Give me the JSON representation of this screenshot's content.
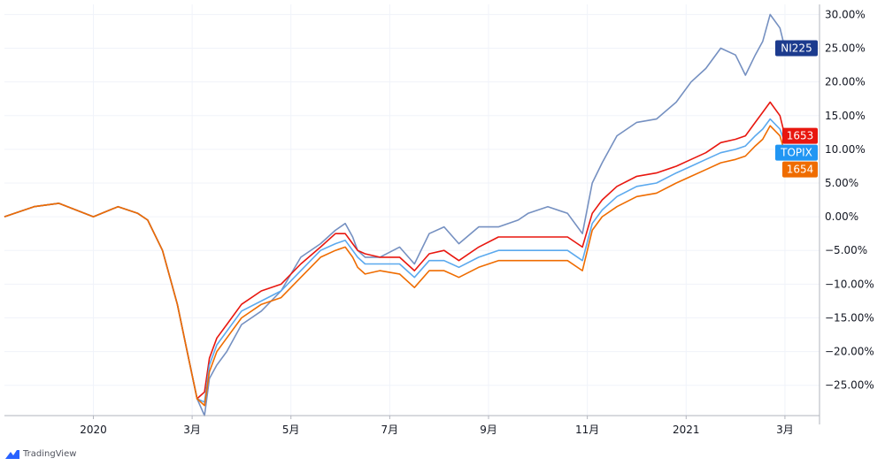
{
  "chart_data": {
    "type": "line",
    "x_ticks": [
      "2020",
      "3月",
      "5月",
      "7月",
      "9月",
      "11月",
      "2021",
      "3月"
    ],
    "y_ticks": [
      "30.00%",
      "25.00%",
      "20.00%",
      "15.00%",
      "10.00%",
      "5.00%",
      "0.00%",
      "−5.00%",
      "−10.00%",
      "−15.00%",
      "−20.00%",
      "−25.00%"
    ],
    "y_tick_values": [
      30,
      25,
      20,
      15,
      10,
      5,
      0,
      -5,
      -10,
      -15,
      -20,
      -25
    ],
    "ylim": [
      -29.5,
      31.5
    ],
    "x_tick_positions": [
      2.2,
      4.2,
      6.2,
      8.2,
      10.2,
      12.2,
      14.2,
      16.2
    ],
    "xlim": [
      0.4,
      16.9
    ],
    "grid": true,
    "series": [
      {
        "name": "NI225",
        "color": "#7590c1",
        "label_color": "#1c3b8e",
        "x": [
          0.4,
          1.0,
          1.5,
          2.2,
          2.7,
          3.1,
          3.3,
          3.6,
          3.9,
          4.1,
          4.3,
          4.45,
          4.55,
          4.7,
          4.9,
          5.2,
          5.6,
          6.0,
          6.4,
          6.8,
          7.1,
          7.3,
          7.45,
          7.55,
          7.7,
          8.0,
          8.4,
          8.7,
          9.0,
          9.3,
          9.6,
          10.0,
          10.4,
          10.8,
          11.0,
          11.4,
          11.8,
          12.1,
          12.3,
          12.5,
          12.8,
          13.2,
          13.6,
          14.0,
          14.3,
          14.6,
          14.9,
          15.2,
          15.4,
          15.6,
          15.75,
          15.9,
          16.1,
          16.2
        ],
        "values": [
          0,
          1.5,
          2.0,
          0,
          1.5,
          0.5,
          -0.5,
          -5,
          -13,
          -20,
          -27,
          -29.5,
          -24,
          -22,
          -20,
          -16,
          -14,
          -11,
          -6,
          -4,
          -2,
          -1,
          -3,
          -5,
          -6,
          -6,
          -4.5,
          -7,
          -2.5,
          -1.5,
          -4,
          -1.5,
          -1.5,
          -0.5,
          0.5,
          1.5,
          0.5,
          -2.5,
          5,
          8,
          12,
          14,
          14.5,
          17,
          20,
          22,
          25,
          24,
          21,
          24,
          26,
          30,
          28,
          25
        ]
      },
      {
        "name": "1653",
        "color": "#e8170f",
        "label_color": "#e8170f",
        "x": [
          0.4,
          1.0,
          1.5,
          2.2,
          2.7,
          3.1,
          3.3,
          3.6,
          3.9,
          4.1,
          4.3,
          4.45,
          4.55,
          4.7,
          4.9,
          5.2,
          5.6,
          6.0,
          6.4,
          6.8,
          7.1,
          7.3,
          7.45,
          7.55,
          7.7,
          8.0,
          8.4,
          8.7,
          9.0,
          9.3,
          9.6,
          10.0,
          10.4,
          10.8,
          11.0,
          11.4,
          11.8,
          12.1,
          12.3,
          12.5,
          12.8,
          13.2,
          13.6,
          14.0,
          14.3,
          14.6,
          14.9,
          15.2,
          15.4,
          15.6,
          15.75,
          15.9,
          16.1,
          16.2
        ],
        "values": [
          0,
          1.5,
          2.0,
          0,
          1.5,
          0.5,
          -0.5,
          -5,
          -13,
          -20,
          -27,
          -26,
          -21,
          -18,
          -16,
          -13,
          -11,
          -10,
          -7,
          -4.5,
          -2.5,
          -2.5,
          -4,
          -5,
          -5.5,
          -6,
          -6,
          -8,
          -5.5,
          -5,
          -6.5,
          -4.5,
          -3,
          -3,
          -3,
          -3,
          -3,
          -4.5,
          0.5,
          2.5,
          4.5,
          6,
          6.5,
          7.5,
          8.5,
          9.5,
          11,
          11.5,
          12,
          14,
          15.5,
          17,
          15,
          12
        ]
      },
      {
        "name": "TOPIX",
        "color": "#5ba9ee",
        "label_color": "#2196f3",
        "x": [
          0.4,
          1.0,
          1.5,
          2.2,
          2.7,
          3.1,
          3.3,
          3.6,
          3.9,
          4.1,
          4.3,
          4.45,
          4.55,
          4.7,
          4.9,
          5.2,
          5.6,
          6.0,
          6.4,
          6.8,
          7.1,
          7.3,
          7.45,
          7.55,
          7.7,
          8.0,
          8.4,
          8.7,
          9.0,
          9.3,
          9.6,
          10.0,
          10.4,
          10.8,
          11.0,
          11.4,
          11.8,
          12.1,
          12.3,
          12.5,
          12.8,
          13.2,
          13.6,
          14.0,
          14.3,
          14.6,
          14.9,
          15.2,
          15.4,
          15.6,
          15.75,
          15.9,
          16.1,
          16.2
        ],
        "values": [
          0,
          1.5,
          2.0,
          0,
          1.5,
          0.5,
          -0.5,
          -5,
          -13,
          -20,
          -27,
          -27.5,
          -22,
          -19,
          -17,
          -14,
          -12.5,
          -11,
          -8,
          -5,
          -4,
          -3.5,
          -5,
          -6,
          -7,
          -7,
          -7,
          -9,
          -6.5,
          -6.5,
          -7.5,
          -6,
          -5,
          -5,
          -5,
          -5,
          -5,
          -6.5,
          -1,
          1,
          3,
          4.5,
          5,
          6.5,
          7.5,
          8.5,
          9.5,
          10,
          10.5,
          12,
          13,
          14.5,
          13,
          11
        ]
      },
      {
        "name": "1654",
        "color": "#ef6c00",
        "label_color": "#ef6c00",
        "x": [
          0.4,
          1.0,
          1.5,
          2.2,
          2.7,
          3.1,
          3.3,
          3.6,
          3.9,
          4.1,
          4.3,
          4.45,
          4.55,
          4.7,
          4.9,
          5.2,
          5.6,
          6.0,
          6.4,
          6.8,
          7.1,
          7.3,
          7.45,
          7.55,
          7.7,
          8.0,
          8.4,
          8.7,
          9.0,
          9.3,
          9.6,
          10.0,
          10.4,
          10.8,
          11.0,
          11.4,
          11.8,
          12.1,
          12.3,
          12.5,
          12.8,
          13.2,
          13.6,
          14.0,
          14.3,
          14.6,
          14.9,
          15.2,
          15.4,
          15.6,
          15.75,
          15.9,
          16.1,
          16.2
        ],
        "values": [
          0,
          1.5,
          2.0,
          0,
          1.5,
          0.5,
          -0.5,
          -5,
          -13,
          -20,
          -27,
          -28,
          -23,
          -20,
          -18,
          -15,
          -13,
          -12,
          -9,
          -6,
          -5,
          -4.5,
          -6,
          -7.5,
          -8.5,
          -8,
          -8.5,
          -10.5,
          -8,
          -8,
          -9,
          -7.5,
          -6.5,
          -6.5,
          -6.5,
          -6.5,
          -6.5,
          -8,
          -2,
          0,
          1.5,
          3,
          3.5,
          5,
          6,
          7,
          8,
          8.5,
          9,
          10.5,
          11.5,
          13.5,
          12,
          9.5
        ]
      }
    ]
  },
  "branding": {
    "name": "TradingView"
  }
}
